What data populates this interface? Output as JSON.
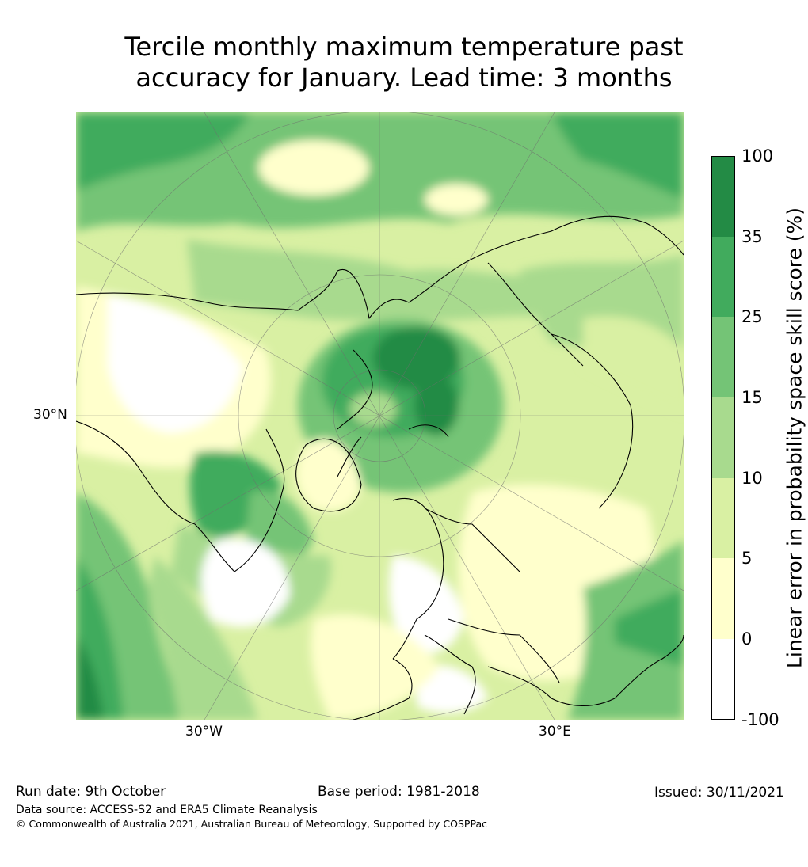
{
  "title": {
    "line1": "Tercile monthly maximum temperature past",
    "line2": "accuracy for January. Lead time: 3 months"
  },
  "map": {
    "projection": "north-polar-stereographic",
    "lat_label": "30°N",
    "lon_labels": [
      "30°W",
      "30°E"
    ]
  },
  "colorbar": {
    "label": "Linear error in probability space skill score (%)",
    "ticks": [
      "100",
      "35",
      "25",
      "15",
      "10",
      "5",
      "0",
      "-100"
    ],
    "bins": [
      {
        "range": "35 to 100",
        "color": "#238b45"
      },
      {
        "range": "25 to 35",
        "color": "#41ab5d"
      },
      {
        "range": "15 to 25",
        "color": "#74c476"
      },
      {
        "range": "10 to 15",
        "color": "#a8da8e"
      },
      {
        "range": "5 to 10",
        "color": "#d9f0a3"
      },
      {
        "range": "0 to 5",
        "color": "#ffffcc"
      },
      {
        "range": "-100 to 0",
        "color": "#ffffff"
      }
    ]
  },
  "footer": {
    "run_date": "Run date: 9th October",
    "base_period": "Base period: 1981-2018",
    "issued": "Issued: 30/11/2021",
    "data_source": "Data source: ACCESS-S2 and ERA5 Climate Reanalysis",
    "copyright": "© Commonwealth of Australia 2021, Australian Bureau of Meteorology, Supported by COSPPac"
  }
}
